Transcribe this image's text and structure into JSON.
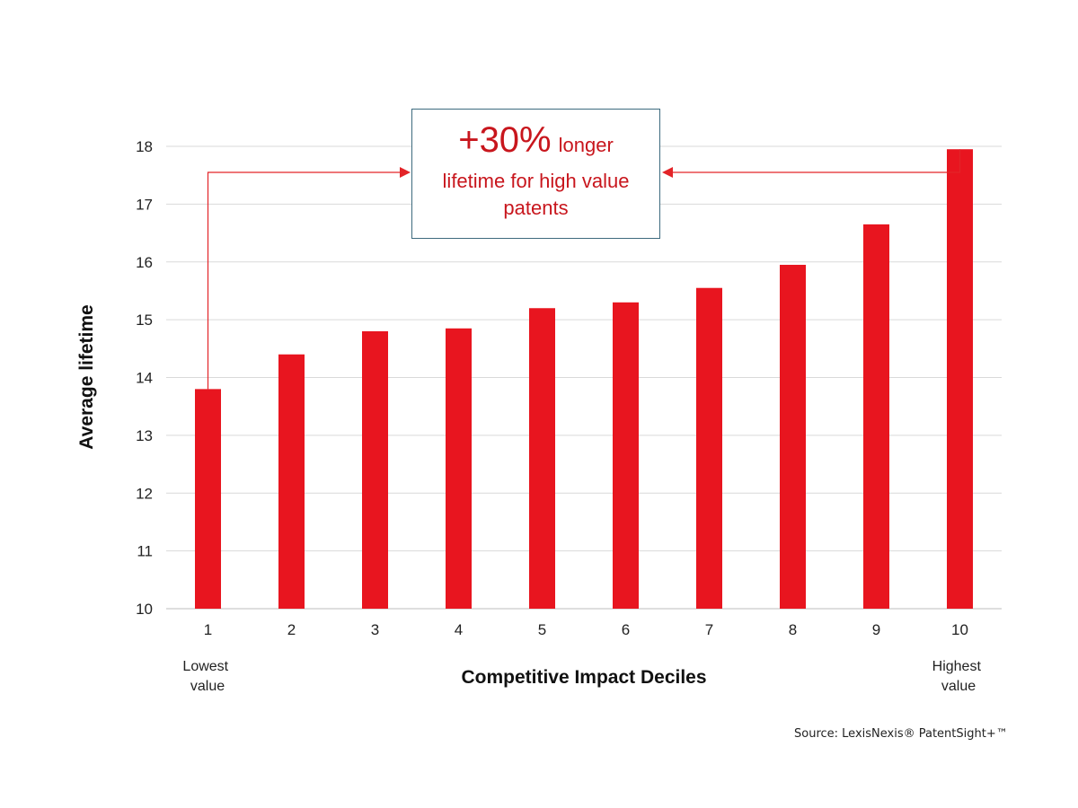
{
  "chart_data": {
    "type": "bar",
    "categories": [
      "1",
      "2",
      "3",
      "4",
      "5",
      "6",
      "7",
      "8",
      "9",
      "10"
    ],
    "values": [
      13.8,
      14.4,
      14.8,
      14.85,
      15.2,
      15.3,
      15.55,
      15.95,
      16.65,
      17.95
    ],
    "title": "",
    "xlabel": "Competitive Impact Deciles",
    "ylabel": "Average lifetime",
    "ylim": [
      10,
      18
    ],
    "yticks": [
      "10",
      "11",
      "12",
      "13",
      "14",
      "15",
      "16",
      "17",
      "18"
    ],
    "grid": true,
    "bar_color": "#e8151f",
    "arrow_color": "#e32428",
    "low_label": [
      "Lowest",
      "value"
    ],
    "high_label": [
      "Highest",
      "value"
    ],
    "annotation": {
      "big": "+30%",
      "small": "longer",
      "rest": [
        "lifetime for high value",
        "patents"
      ],
      "text_color": "#c8161d",
      "border_color": "#3d6a7e"
    }
  },
  "source": "Source: LexisNexis® PatentSight+™"
}
